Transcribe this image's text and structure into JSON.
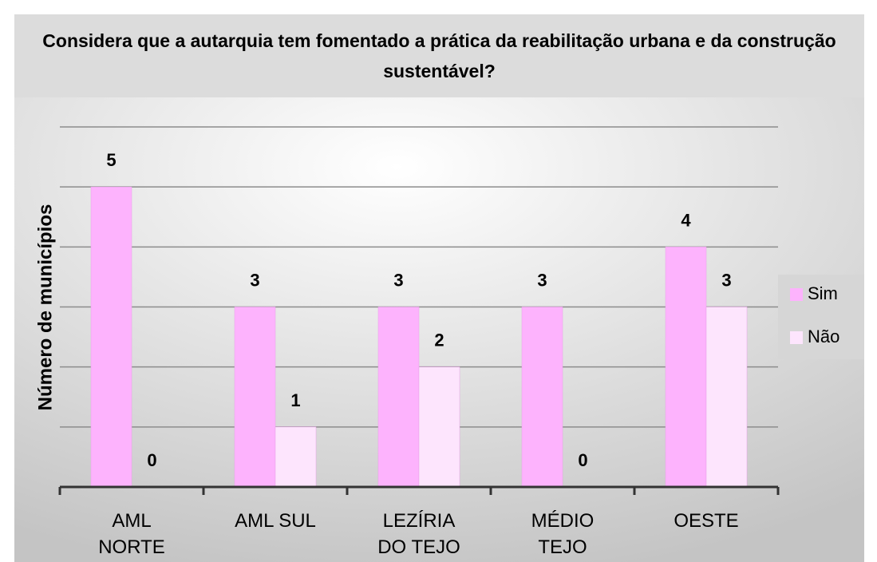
{
  "chart_data": {
    "type": "bar",
    "title": "Considera que a autarquia tem fomentado a prática da reabilitação urbana e da construção sustentável?",
    "y_label": "Número de municípios",
    "categories": [
      "AML\nNORTE",
      "AML SUL",
      "LEZÍRIA\nDO TEJO",
      "MÉDIO\nTEJO",
      "OESTE"
    ],
    "series": [
      {
        "name": "Sim",
        "color": "#fdb3fd",
        "values": [
          5,
          3,
          3,
          3,
          4
        ]
      },
      {
        "name": "Não",
        "color": "#fde5fd",
        "values": [
          0,
          1,
          2,
          0,
          3
        ]
      }
    ],
    "ylim": [
      0,
      6
    ],
    "yticks": [
      0,
      1,
      2,
      3,
      4,
      5,
      6
    ],
    "grid": true,
    "legend": "right"
  }
}
